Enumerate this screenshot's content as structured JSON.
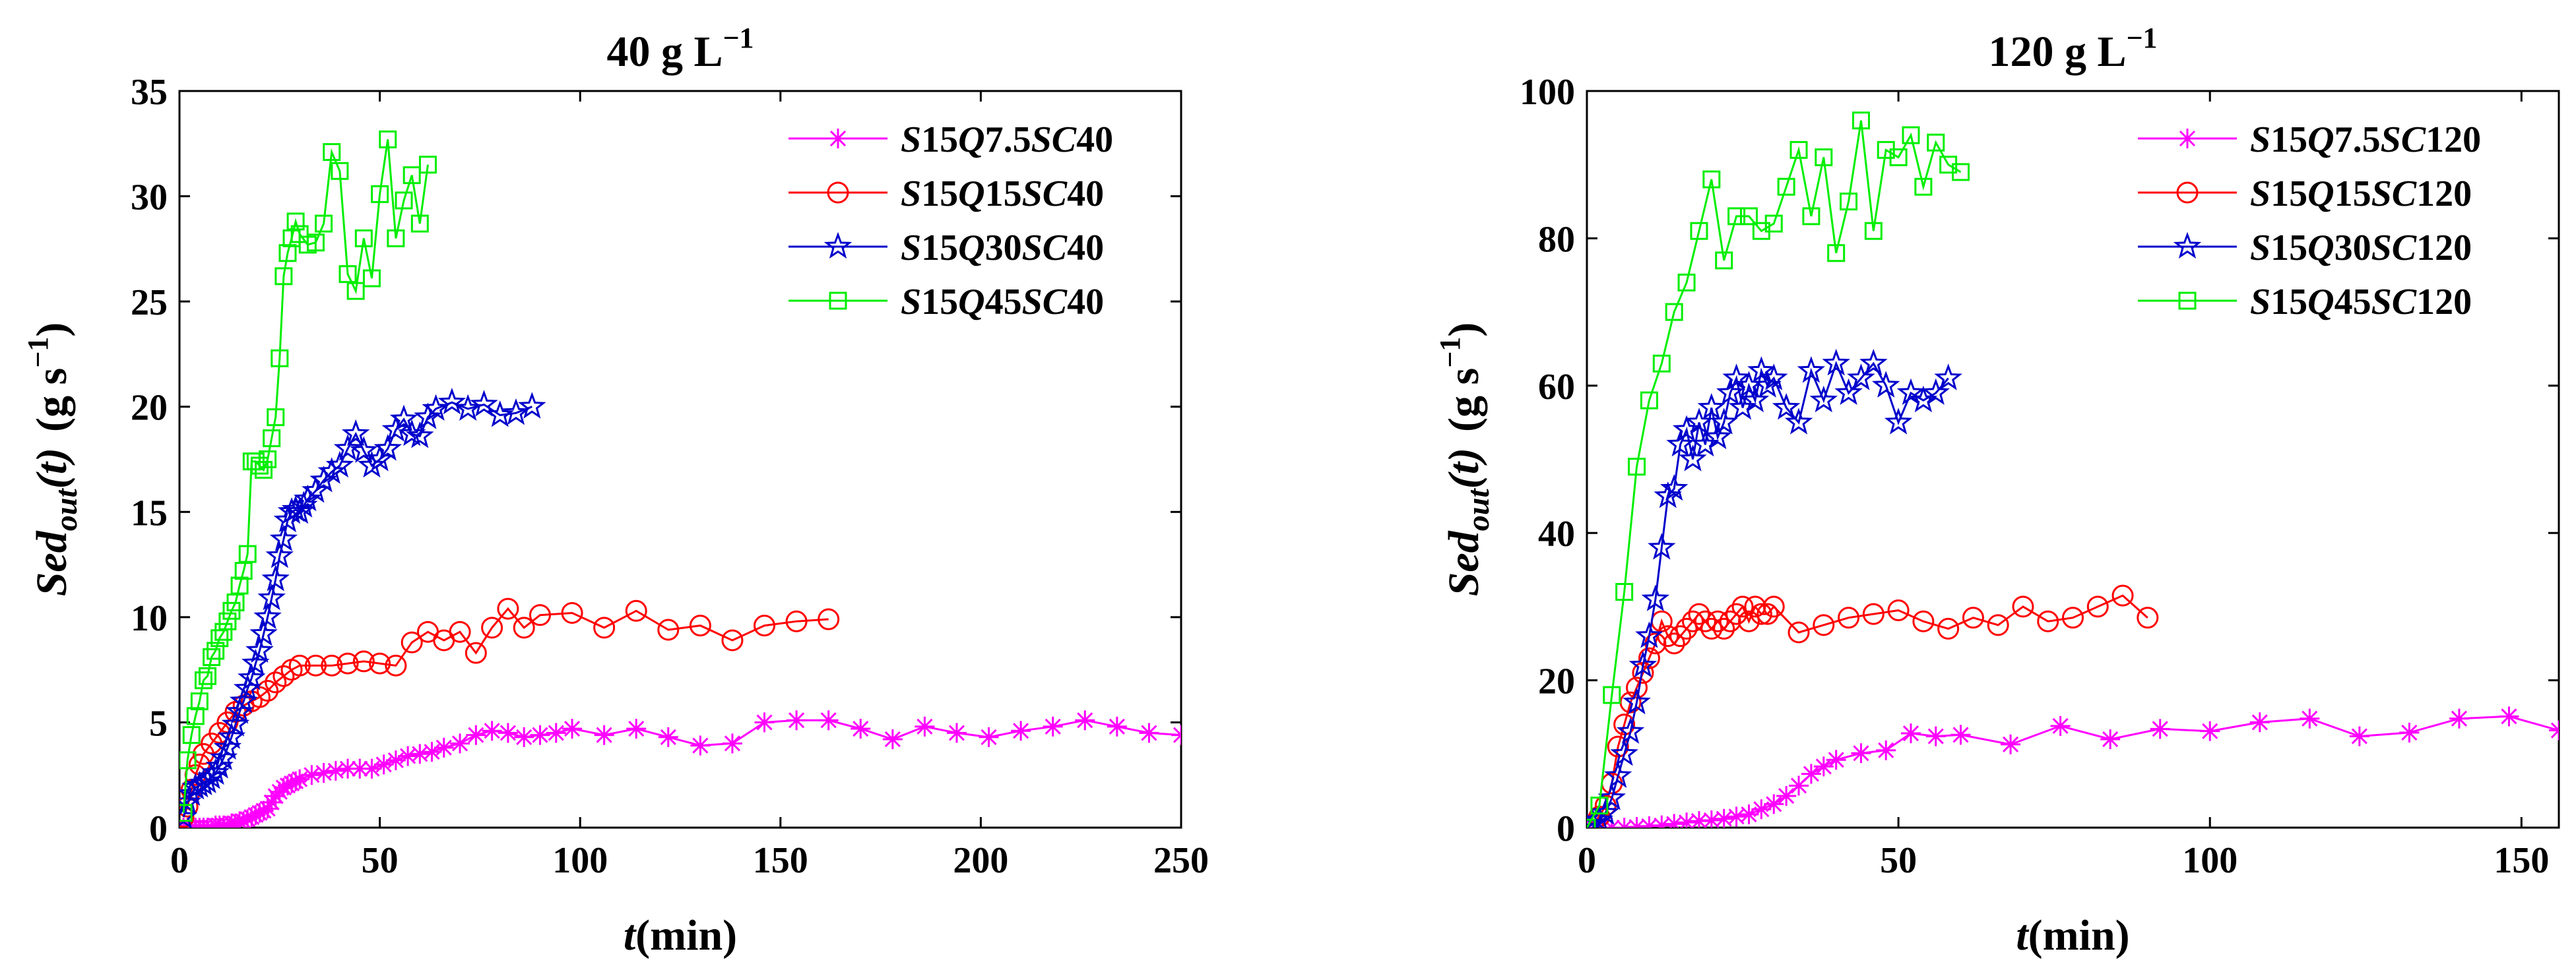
{
  "chart_data": [
    {
      "type": "line",
      "title": "40 g L",
      "title_sup": "−1",
      "xlabel_italic": "t",
      "xlabel": "(min)",
      "ylabel_main": "Sed",
      "ylabel_sub": "out",
      "ylabel_arg": "(t)",
      "ylabel_units": "(g s",
      "ylabel_units_sup": "−1",
      "ylabel_units_close": ")",
      "xlim": [
        0,
        250
      ],
      "ylim": [
        0,
        35
      ],
      "xticks": [
        "0",
        "50",
        "100",
        "150",
        "200",
        "250"
      ],
      "yticks": [
        "0",
        "5",
        "10",
        "15",
        "20",
        "25",
        "30",
        "35"
      ],
      "legend_position": "top-right",
      "series": [
        {
          "name": "S15Q7.5SC40",
          "legend_parts": [
            "S",
            "15",
            "Q",
            "7.5",
            "SC",
            "40"
          ],
          "color": "#ff00ff",
          "marker": "asterisk",
          "x": [
            1,
            2,
            3,
            4,
            5,
            6,
            7,
            8,
            9,
            10,
            11,
            12,
            13,
            14,
            15,
            16,
            17,
            18,
            19,
            20,
            21,
            22,
            23,
            24,
            25,
            26,
            27,
            28,
            29,
            30,
            33,
            36,
            39,
            42,
            45,
            48,
            51,
            54,
            57,
            60,
            63,
            66,
            70,
            74,
            78,
            82,
            86,
            90,
            94,
            98,
            106,
            114,
            122,
            130,
            138,
            146,
            154,
            162,
            170,
            178,
            186,
            194,
            202,
            210,
            218,
            226,
            234,
            242,
            250
          ],
          "y": [
            0,
            0,
            0,
            0,
            0,
            0,
            0,
            0,
            0.1,
            0.1,
            0.1,
            0.1,
            0.2,
            0.2,
            0.3,
            0.3,
            0.4,
            0.5,
            0.6,
            0.7,
            0.8,
            0.9,
            1.2,
            1.5,
            1.7,
            1.9,
            2.0,
            2.1,
            2.2,
            2.3,
            2.5,
            2.6,
            2.7,
            2.8,
            2.8,
            2.8,
            3.0,
            3.2,
            3.4,
            3.5,
            3.6,
            3.8,
            4.0,
            4.4,
            4.6,
            4.5,
            4.3,
            4.4,
            4.5,
            4.7,
            4.4,
            4.7,
            4.3,
            3.9,
            4.0,
            5.0,
            5.1,
            5.1,
            4.7,
            4.2,
            4.8,
            4.5,
            4.3,
            4.6,
            4.8,
            5.1,
            4.8,
            4.5,
            4.4
          ]
        },
        {
          "name": "S15Q15SC40",
          "legend_parts": [
            "S",
            "15",
            "Q",
            "15",
            "SC",
            "40"
          ],
          "color": "#ff0000",
          "marker": "circle",
          "x": [
            1,
            2,
            3,
            4,
            5,
            6,
            8,
            10,
            12,
            14,
            16,
            18,
            20,
            22,
            24,
            26,
            28,
            30,
            34,
            38,
            42,
            46,
            50,
            54,
            58,
            62,
            66,
            70,
            74,
            78,
            82,
            86,
            90,
            98,
            106,
            114,
            122,
            130,
            138,
            146,
            154,
            162
          ],
          "y": [
            0.5,
            1.0,
            1.8,
            2.5,
            3.0,
            3.5,
            4.0,
            4.5,
            5.0,
            5.5,
            5.8,
            6.0,
            6.2,
            6.5,
            6.9,
            7.2,
            7.5,
            7.7,
            7.7,
            7.7,
            7.8,
            7.9,
            7.8,
            7.7,
            8.8,
            9.3,
            8.9,
            9.3,
            8.3,
            9.5,
            10.4,
            9.5,
            10.1,
            10.2,
            9.5,
            10.3,
            9.4,
            9.6,
            8.9,
            9.6,
            9.8,
            9.9
          ]
        },
        {
          "name": "S15Q30SC40",
          "legend_parts": [
            "S",
            "15",
            "Q",
            "30",
            "SC",
            "40"
          ],
          "color": "#0000cc",
          "marker": "star",
          "x": [
            1,
            2,
            3,
            4,
            5,
            6,
            7,
            8,
            9,
            10,
            11,
            12,
            13,
            14,
            15,
            16,
            17,
            18,
            19,
            20,
            21,
            22,
            23,
            24,
            25,
            26,
            27,
            28,
            29,
            30,
            31,
            32,
            34,
            36,
            38,
            40,
            42,
            44,
            46,
            48,
            50,
            52,
            54,
            56,
            58,
            60,
            62,
            64,
            68,
            72,
            76,
            80,
            84,
            88
          ],
          "y": [
            0.5,
            1.2,
            1.6,
            1.9,
            2.0,
            2.1,
            2.2,
            2.4,
            2.6,
            2.9,
            3.3,
            3.8,
            4.3,
            4.9,
            5.5,
            6.0,
            6.6,
            7.1,
            7.8,
            8.4,
            9.2,
            10.0,
            10.9,
            11.8,
            12.9,
            13.7,
            14.6,
            15.0,
            15.1,
            15.0,
            15.3,
            15.6,
            16.0,
            16.5,
            16.9,
            17.2,
            18.0,
            18.7,
            17.9,
            17.2,
            17.5,
            18.0,
            18.9,
            19.4,
            18.7,
            18.6,
            19.5,
            19.9,
            20.2,
            19.9,
            20.1,
            19.6,
            19.7,
            20.0
          ]
        },
        {
          "name": "S15Q45SC40",
          "legend_parts": [
            "S",
            "15",
            "Q",
            "45",
            "SC",
            "40"
          ],
          "color": "#00ee00",
          "marker": "square",
          "x": [
            1,
            2,
            3,
            4,
            5,
            6,
            7,
            8,
            9,
            10,
            11,
            12,
            13,
            14,
            15,
            16,
            17,
            18,
            19,
            20,
            21,
            22,
            23,
            24,
            25,
            26,
            27,
            28,
            29,
            30,
            32,
            34,
            36,
            38,
            40,
            42,
            44,
            46,
            48,
            50,
            52,
            54,
            56,
            58,
            60,
            62
          ],
          "y": [
            0.7,
            3.2,
            4.4,
            5.3,
            6.0,
            7.0,
            7.2,
            8.1,
            8.4,
            9.0,
            9.3,
            9.8,
            10.3,
            10.7,
            11.5,
            12.2,
            13.0,
            17.4,
            17.4,
            17.2,
            17.0,
            17.5,
            18.5,
            19.5,
            22.3,
            26.2,
            27.3,
            28.0,
            28.8,
            28.2,
            27.7,
            27.8,
            28.7,
            32.1,
            31.2,
            26.3,
            25.5,
            28.0,
            26.1,
            30.1,
            32.7,
            28.0,
            29.8,
            31.0,
            28.7,
            31.5
          ]
        }
      ]
    },
    {
      "type": "line",
      "title": "120 g L",
      "title_sup": "−1",
      "xlabel_italic": "t",
      "xlabel": "(min)",
      "ylabel_main": "Sed",
      "ylabel_sub": "out",
      "ylabel_arg": "(t)",
      "ylabel_units": "(g s",
      "ylabel_units_sup": "−1",
      "ylabel_units_close": ")",
      "xlim": [
        0,
        156
      ],
      "ylim": [
        0,
        100
      ],
      "xticks": [
        "0",
        "50",
        "100",
        "150"
      ],
      "yticks": [
        "0",
        "20",
        "40",
        "60",
        "80",
        "100"
      ],
      "legend_position": "top-right",
      "series": [
        {
          "name": "S15Q7.5SC120",
          "legend_parts": [
            "S",
            "15",
            "Q",
            "7.5",
            "SC",
            "120"
          ],
          "color": "#ff00ff",
          "marker": "asterisk",
          "x": [
            0,
            2,
            4,
            6,
            8,
            10,
            12,
            14,
            16,
            18,
            20,
            22,
            24,
            26,
            28,
            30,
            32,
            34,
            36,
            38,
            40,
            44,
            48,
            52,
            56,
            60,
            68,
            76,
            84,
            92,
            100,
            108,
            116,
            124,
            132,
            140,
            148,
            156
          ],
          "y": [
            0,
            0,
            0,
            0,
            0.1,
            0.2,
            0.3,
            0.5,
            0.7,
            0.9,
            1.0,
            1.2,
            1.5,
            1.8,
            2.5,
            3.2,
            4.3,
            5.7,
            7.3,
            8.3,
            9.2,
            10.1,
            10.5,
            12.8,
            12.4,
            12.6,
            11.3,
            13.8,
            12.0,
            13.4,
            13.1,
            14.3,
            14.8,
            12.4,
            12.9,
            14.8,
            15.1,
            13.2
          ]
        },
        {
          "name": "S15Q15SC120",
          "legend_parts": [
            "S",
            "15",
            "Q",
            "15",
            "SC",
            "120"
          ],
          "color": "#ff0000",
          "marker": "circle",
          "x": [
            0,
            1,
            2,
            3,
            4,
            5,
            6,
            7,
            8,
            9,
            10,
            11,
            12,
            13,
            14,
            15,
            16,
            17,
            18,
            19,
            20,
            21,
            22,
            23,
            24,
            25,
            26,
            27,
            28,
            29,
            30,
            34,
            38,
            42,
            46,
            50,
            54,
            58,
            62,
            66,
            70,
            74,
            78,
            82,
            86,
            90
          ],
          "y": [
            0,
            0.5,
            1.5,
            3,
            6,
            11,
            14,
            17,
            19,
            21,
            23,
            25,
            28,
            26,
            25,
            26,
            27,
            28,
            29,
            28,
            27,
            28,
            27,
            28,
            29,
            30,
            28,
            30,
            29,
            29,
            30,
            26.5,
            27.5,
            28.5,
            29.0,
            29.5,
            28.0,
            27.0,
            28.5,
            27.5,
            30.0,
            28.0,
            28.5,
            30.0,
            31.5,
            28.5
          ]
        },
        {
          "name": "S15Q30SC120",
          "legend_parts": [
            "S",
            "15",
            "Q",
            "30",
            "SC",
            "120"
          ],
          "color": "#0000cc",
          "marker": "star",
          "x": [
            0,
            1,
            2,
            3,
            4,
            5,
            6,
            7,
            8,
            9,
            10,
            11,
            12,
            13,
            14,
            15,
            16,
            17,
            18,
            19,
            20,
            21,
            22,
            23,
            24,
            25,
            26,
            27,
            28,
            29,
            30,
            32,
            34,
            36,
            38,
            40,
            42,
            44,
            46,
            48,
            50,
            52,
            54,
            56,
            58
          ],
          "y": [
            0,
            0.5,
            1.0,
            2.0,
            4.0,
            7.0,
            10.0,
            13.0,
            17.0,
            22.0,
            26.0,
            31.0,
            38.0,
            45.0,
            46.0,
            52.0,
            54.0,
            50.0,
            55.0,
            52.0,
            57.0,
            53.0,
            55.0,
            59.0,
            61.0,
            57.0,
            60.0,
            58.0,
            62.0,
            60.0,
            61.0,
            57.0,
            55.0,
            62.0,
            58.0,
            63.0,
            59.0,
            61.0,
            63.0,
            60.0,
            55.0,
            59.0,
            58.0,
            59.0,
            61.0
          ]
        },
        {
          "name": "S15Q45SC120",
          "legend_parts": [
            "S",
            "15",
            "Q",
            "45",
            "SC",
            "120"
          ],
          "color": "#00ee00",
          "marker": "square",
          "x": [
            0,
            2,
            4,
            6,
            8,
            10,
            12,
            14,
            16,
            18,
            20,
            22,
            24,
            26,
            28,
            30,
            32,
            34,
            36,
            38,
            40,
            42,
            44,
            46,
            48,
            50,
            52,
            54,
            56,
            58,
            60
          ],
          "y": [
            0,
            3,
            18,
            32,
            49,
            58,
            63,
            70,
            74,
            81,
            88,
            77,
            83,
            83,
            81,
            82,
            87,
            92,
            83,
            91,
            78,
            85,
            96,
            81,
            92,
            91,
            94,
            87,
            93,
            90,
            89
          ]
        }
      ]
    }
  ]
}
